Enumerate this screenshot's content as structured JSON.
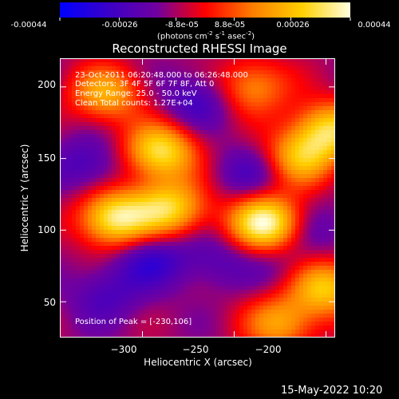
{
  "colorbar": {
    "ticks": [
      "-0.00044",
      "-0.00026",
      "-8.8e-05",
      "8.8e-05",
      "0.00026",
      "0.00044"
    ],
    "tick_values": [
      -0.00044,
      -0.00026,
      -8.8e-05,
      8.8e-05,
      0.00026,
      0.00044
    ],
    "range": [
      -0.00044,
      0.00044
    ],
    "units_prefix": "(photons cm",
    "units_exp1": "-2",
    "units_mid1": " s",
    "units_exp2": "-1",
    "units_mid2": " asec",
    "units_exp3": "-2",
    "units_suffix": ")",
    "colormap": [
      "#0000ff",
      "#3a00c8",
      "#7000a0",
      "#ff0000",
      "#ff8000",
      "#ffd000",
      "#ffffe0"
    ]
  },
  "chart_data": {
    "type": "heatmap",
    "title": "Reconstructed RHESSI Image",
    "xlabel": "Heliocentric X (arcsec)",
    "ylabel": "Heliocentric Y (arcsec)",
    "xlim": [
      -345,
      -195
    ],
    "ylim": [
      25,
      220
    ],
    "xticks": [
      -300,
      -250,
      -200
    ],
    "yticks": [
      50,
      100,
      150,
      200
    ],
    "xtick_labels": [
      "−300",
      "−250",
      "−200"
    ],
    "ytick_labels": [
      "50",
      "100",
      "150",
      "200"
    ],
    "peak": [
      -230,
      106
    ],
    "bright_regions": [
      {
        "x": -233,
        "y": 105,
        "value": 0.00044
      },
      {
        "x": -315,
        "y": 108,
        "value": 0.00038
      },
      {
        "x": -290,
        "y": 155,
        "value": 0.00034
      },
      {
        "x": -285,
        "y": 115,
        "value": 0.0003
      },
      {
        "x": -198,
        "y": 170,
        "value": 0.0003
      },
      {
        "x": -215,
        "y": 150,
        "value": 0.00024
      },
      {
        "x": -200,
        "y": 60,
        "value": 0.00028
      },
      {
        "x": -320,
        "y": 195,
        "value": 0.00022
      },
      {
        "x": -240,
        "y": 200,
        "value": 0.00018
      },
      {
        "x": -225,
        "y": 35,
        "value": 0.0002
      }
    ],
    "dark_regions": [
      {
        "x": -295,
        "y": 80,
        "value": -0.0003
      },
      {
        "x": -270,
        "y": 190,
        "value": -0.00028
      },
      {
        "x": -330,
        "y": 145,
        "value": -0.00026
      },
      {
        "x": -240,
        "y": 140,
        "value": -0.00026
      },
      {
        "x": -320,
        "y": 55,
        "value": -0.00024
      },
      {
        "x": -260,
        "y": 80,
        "value": -0.00022
      },
      {
        "x": -205,
        "y": 100,
        "value": -0.0002
      },
      {
        "x": -225,
        "y": 75,
        "value": -0.00018
      }
    ],
    "annotations": {
      "time_range": "23-Oct-2011 06:20:48.000 to 06:26:48.000",
      "detectors": "Detectors: 3F 4F 5F 6F 7F 8F, Att 0",
      "energy": "Energy Range: 25.0 - 50.0 keV",
      "clean": "Clean     Total counts: 1.27E+04",
      "peak_text": "Position of Peak = [-230,106]"
    }
  },
  "footer": {
    "timestamp": "15-May-2022 10:20"
  }
}
